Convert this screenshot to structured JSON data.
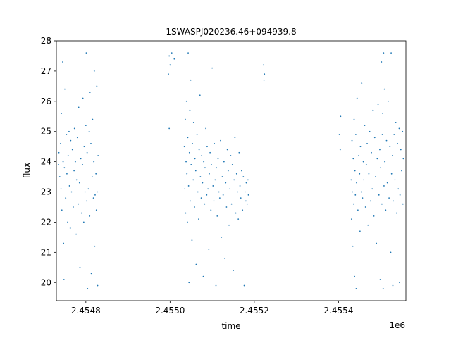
{
  "chart_data": {
    "type": "scatter",
    "title": "1SWASPJ020236.46+094939.8",
    "xlabel": "time",
    "ylabel": "flux",
    "x_offset_label": "1e6",
    "xlim": [
      2454730,
      2455560
    ],
    "ylim": [
      19.4,
      28
    ],
    "grid": false,
    "legend": "none",
    "colors": {
      "points": "#1f77b4",
      "axes": "#000000",
      "background": "#ffffff"
    },
    "xticks": [
      {
        "value": 2454800,
        "label": "2.4548"
      },
      {
        "value": 2455000,
        "label": "2.4550"
      },
      {
        "value": 2455200,
        "label": "2.4552"
      },
      {
        "value": 2455400,
        "label": "2.4554"
      }
    ],
    "yticks": [
      {
        "value": 20,
        "label": "20"
      },
      {
        "value": 21,
        "label": "21"
      },
      {
        "value": 22,
        "label": "22"
      },
      {
        "value": 23,
        "label": "23"
      },
      {
        "value": 24,
        "label": "24"
      },
      {
        "value": 25,
        "label": "25"
      },
      {
        "value": 26,
        "label": "26"
      },
      {
        "value": 27,
        "label": "27"
      },
      {
        "value": 28,
        "label": "28"
      }
    ],
    "series": [
      {
        "points": [
          [
            2454735,
            23.9
          ],
          [
            2454736,
            24.3
          ],
          [
            2454738,
            23.5
          ],
          [
            2454740,
            24.6
          ],
          [
            2454741,
            23.1
          ],
          [
            2454742,
            25.6
          ],
          [
            2454743,
            22.4
          ],
          [
            2454745,
            27.3
          ],
          [
            2454746,
            24.0
          ],
          [
            2454747,
            21.3
          ],
          [
            2454748,
            20.1
          ],
          [
            2454749,
            23.8
          ],
          [
            2454750,
            26.4
          ],
          [
            2454752,
            22.8
          ],
          [
            2454754,
            24.9
          ],
          [
            2454755,
            23.6
          ],
          [
            2454757,
            22.0
          ],
          [
            2454758,
            24.2
          ],
          [
            2454760,
            25.0
          ],
          [
            2454761,
            23.2
          ],
          [
            2454763,
            21.8
          ],
          [
            2454764,
            24.7
          ],
          [
            2454766,
            23.0
          ],
          [
            2454768,
            24.4
          ],
          [
            2454770,
            22.5
          ],
          [
            2454772,
            23.7
          ],
          [
            2454773,
            25.1
          ],
          [
            2454775,
            24.0
          ],
          [
            2454777,
            21.6
          ],
          [
            2454778,
            23.4
          ],
          [
            2454780,
            24.8
          ],
          [
            2454782,
            22.6
          ],
          [
            2454783,
            25.8
          ],
          [
            2454785,
            23.3
          ],
          [
            2454786,
            20.5
          ],
          [
            2454788,
            24.1
          ],
          [
            2454790,
            22.3
          ],
          [
            2454792,
            23.9
          ],
          [
            2454793,
            26.1
          ],
          [
            2454795,
            22.0
          ],
          [
            2454796,
            24.5
          ],
          [
            2454798,
            23.0
          ],
          [
            2454800,
            25.2
          ],
          [
            2454801,
            27.6
          ],
          [
            2454802,
            22.7
          ],
          [
            2454803,
            24.3
          ],
          [
            2454804,
            19.8
          ],
          [
            2454806,
            23.1
          ],
          [
            2454808,
            25.0
          ],
          [
            2454809,
            22.2
          ],
          [
            2454810,
            26.3
          ],
          [
            2454812,
            24.6
          ],
          [
            2454813,
            20.3
          ],
          [
            2454815,
            23.5
          ],
          [
            2454816,
            25.4
          ],
          [
            2454818,
            22.8
          ],
          [
            2454819,
            24.0
          ],
          [
            2454820,
            27.0
          ],
          [
            2454821,
            21.2
          ],
          [
            2454822,
            22.9
          ],
          [
            2454824,
            23.6
          ],
          [
            2454825,
            22.4
          ],
          [
            2454826,
            26.5
          ],
          [
            2454827,
            23.0
          ],
          [
            2454828,
            19.9
          ],
          [
            2454829,
            24.2
          ],
          [
            2454996,
            26.9
          ],
          [
            2454998,
            27.5
          ],
          [
            2455000,
            27.2
          ],
          [
            2455004,
            27.6
          ],
          [
            2455010,
            27.4
          ],
          [
            2454998,
            25.1
          ],
          [
            2455034,
            24.5
          ],
          [
            2455035,
            23.1
          ],
          [
            2455036,
            25.4
          ],
          [
            2455037,
            22.3
          ],
          [
            2455038,
            24.0
          ],
          [
            2455039,
            26.0
          ],
          [
            2455040,
            23.6
          ],
          [
            2455041,
            22.0
          ],
          [
            2455042,
            24.8
          ],
          [
            2455043,
            27.6
          ],
          [
            2455044,
            23.2
          ],
          [
            2455045,
            20.0
          ],
          [
            2455046,
            24.3
          ],
          [
            2455047,
            25.7
          ],
          [
            2455048,
            22.7
          ],
          [
            2455049,
            26.7
          ],
          [
            2455050,
            23.9
          ],
          [
            2455052,
            21.4
          ],
          [
            2455053,
            24.6
          ],
          [
            2455055,
            23.4
          ],
          [
            2455056,
            25.3
          ],
          [
            2455058,
            22.5
          ],
          [
            2455059,
            24.1
          ],
          [
            2455061,
            23.7
          ],
          [
            2455062,
            20.6
          ],
          [
            2455064,
            24.9
          ],
          [
            2455066,
            23.0
          ],
          [
            2455068,
            22.1
          ],
          [
            2455069,
            24.4
          ],
          [
            2455071,
            26.2
          ],
          [
            2455072,
            23.5
          ],
          [
            2455074,
            22.8
          ],
          [
            2455075,
            24.2
          ],
          [
            2455077,
            23.3
          ],
          [
            2455079,
            20.2
          ],
          [
            2455080,
            24.0
          ],
          [
            2455082,
            22.6
          ],
          [
            2455083,
            23.8
          ],
          [
            2455085,
            25.1
          ],
          [
            2455087,
            22.9
          ],
          [
            2455088,
            24.5
          ],
          [
            2455090,
            23.1
          ],
          [
            2455092,
            21.1
          ],
          [
            2455093,
            23.6
          ],
          [
            2455095,
            24.3
          ],
          [
            2455097,
            22.4
          ],
          [
            2455098,
            23.9
          ],
          [
            2455100,
            27.1
          ],
          [
            2455102,
            23.2
          ],
          [
            2455104,
            22.7
          ],
          [
            2455105,
            24.6
          ],
          [
            2455107,
            23.4
          ],
          [
            2455109,
            19.9
          ],
          [
            2455110,
            23.8
          ],
          [
            2455112,
            22.2
          ],
          [
            2455114,
            24.1
          ],
          [
            2455116,
            23.0
          ],
          [
            2455118,
            22.8
          ],
          [
            2455120,
            24.7
          ],
          [
            2455122,
            21.5
          ],
          [
            2455124,
            23.5
          ],
          [
            2455126,
            22.9
          ],
          [
            2455128,
            24.0
          ],
          [
            2455130,
            20.8
          ],
          [
            2455132,
            23.3
          ],
          [
            2455134,
            22.5
          ],
          [
            2455136,
            24.4
          ],
          [
            2455138,
            23.7
          ],
          [
            2455140,
            21.9
          ],
          [
            2455142,
            23.1
          ],
          [
            2455144,
            24.2
          ],
          [
            2455146,
            22.6
          ],
          [
            2455148,
            23.9
          ],
          [
            2455150,
            20.4
          ],
          [
            2455152,
            23.4
          ],
          [
            2455154,
            24.8
          ],
          [
            2455156,
            22.3
          ],
          [
            2455158,
            23.6
          ],
          [
            2455160,
            23.0
          ],
          [
            2455162,
            22.1
          ],
          [
            2455164,
            24.3
          ],
          [
            2455166,
            23.2
          ],
          [
            2455168,
            22.8
          ],
          [
            2455170,
            23.7
          ],
          [
            2455172,
            22.4
          ],
          [
            2455174,
            23.5
          ],
          [
            2455176,
            19.9
          ],
          [
            2455178,
            23.0
          ],
          [
            2455180,
            22.7
          ],
          [
            2455181,
            23.3
          ],
          [
            2455183,
            22.6
          ],
          [
            2455185,
            23.4
          ],
          [
            2455186,
            22.9
          ],
          [
            2455222,
            27.2
          ],
          [
            2455223,
            26.7
          ],
          [
            2455224,
            26.9
          ],
          [
            2455402,
            24.9
          ],
          [
            2455404,
            24.4
          ],
          [
            2455405,
            25.5
          ],
          [
            2455430,
            23.4
          ],
          [
            2455431,
            22.1
          ],
          [
            2455432,
            24.7
          ],
          [
            2455433,
            23.0
          ],
          [
            2455434,
            21.2
          ],
          [
            2455435,
            24.1
          ],
          [
            2455436,
            22.6
          ],
          [
            2455437,
            25.4
          ],
          [
            2455438,
            20.2
          ],
          [
            2455439,
            23.7
          ],
          [
            2455440,
            22.9
          ],
          [
            2455441,
            24.9
          ],
          [
            2455442,
            19.8
          ],
          [
            2455443,
            23.3
          ],
          [
            2455444,
            26.1
          ],
          [
            2455446,
            22.4
          ],
          [
            2455448,
            24.2
          ],
          [
            2455450,
            23.6
          ],
          [
            2455451,
            21.7
          ],
          [
            2455452,
            24.5
          ],
          [
            2455454,
            23.0
          ],
          [
            2455455,
            26.6
          ],
          [
            2455457,
            22.8
          ],
          [
            2455459,
            24.0
          ],
          [
            2455460,
            23.4
          ],
          [
            2455462,
            25.2
          ],
          [
            2455464,
            22.5
          ],
          [
            2455466,
            23.9
          ],
          [
            2455468,
            24.6
          ],
          [
            2455470,
            21.9
          ],
          [
            2455472,
            23.6
          ],
          [
            2455474,
            25.0
          ],
          [
            2455476,
            22.7
          ],
          [
            2455478,
            24.3
          ],
          [
            2455480,
            23.1
          ],
          [
            2455482,
            25.7
          ],
          [
            2455484,
            22.2
          ],
          [
            2455486,
            24.8
          ],
          [
            2455488,
            23.5
          ],
          [
            2455490,
            21.3
          ],
          [
            2455492,
            24.1
          ],
          [
            2455494,
            25.9
          ],
          [
            2455496,
            22.9
          ],
          [
            2455498,
            24.4
          ],
          [
            2455499,
            20.1
          ],
          [
            2455500,
            23.8
          ],
          [
            2455502,
            27.3
          ],
          [
            2455503,
            22.6
          ],
          [
            2455504,
            24.9
          ],
          [
            2455505,
            25.6
          ],
          [
            2455506,
            19.8
          ],
          [
            2455507,
            27.6
          ],
          [
            2455508,
            23.2
          ],
          [
            2455509,
            26.4
          ],
          [
            2455510,
            24.0
          ],
          [
            2455512,
            22.4
          ],
          [
            2455514,
            24.7
          ],
          [
            2455516,
            23.3
          ],
          [
            2455518,
            26.0
          ],
          [
            2455520,
            22.8
          ],
          [
            2455522,
            24.5
          ],
          [
            2455524,
            21.0
          ],
          [
            2455525,
            27.6
          ],
          [
            2455526,
            23.6
          ],
          [
            2455528,
            24.2
          ],
          [
            2455529,
            19.9
          ],
          [
            2455530,
            22.7
          ],
          [
            2455532,
            24.9
          ],
          [
            2455534,
            23.4
          ],
          [
            2455536,
            25.3
          ],
          [
            2455538,
            22.3
          ],
          [
            2455540,
            24.6
          ],
          [
            2455542,
            23.1
          ],
          [
            2455544,
            25.1
          ],
          [
            2455545,
            20.0
          ],
          [
            2455546,
            22.9
          ],
          [
            2455548,
            24.4
          ],
          [
            2455550,
            23.7
          ],
          [
            2455552,
            25.0
          ],
          [
            2455553,
            22.6
          ],
          [
            2455554,
            24.1
          ]
        ]
      }
    ]
  }
}
